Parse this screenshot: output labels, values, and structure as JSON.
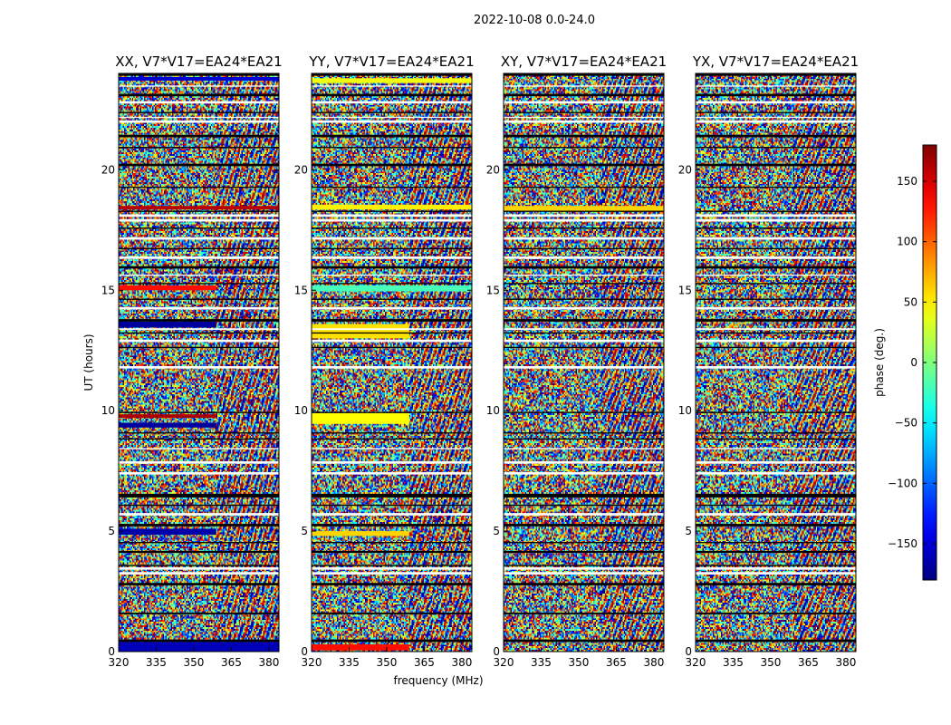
{
  "chart_data": {
    "type": "heatmap",
    "suptitle": "2022-10-08 0.0-24.0",
    "xlabel": "frequency (MHz)",
    "ylabel": "UT (hours)",
    "xlim": [
      320,
      384
    ],
    "ylim": [
      0,
      24
    ],
    "xticks": [
      320,
      335,
      350,
      365,
      380
    ],
    "yticks": [
      0,
      5,
      10,
      15,
      20
    ],
    "colorbar": {
      "label": "phase (deg.)",
      "range": [
        -180,
        180
      ],
      "ticks": [
        -150,
        -100,
        -50,
        0,
        50,
        100,
        150
      ],
      "tick_labels": [
        "−150",
        "−100",
        "−50",
        "0",
        "50",
        "100",
        "150"
      ],
      "colormap": "jet"
    },
    "panels": [
      {
        "title": "XX, V7*V17=EA24*EA21",
        "bands": [
          {
            "t0": 0.0,
            "t1": 0.4,
            "f0": 320,
            "f1": 384,
            "phase": -160
          },
          {
            "t0": 4.85,
            "t1": 5.1,
            "f0": 320,
            "f1": 359,
            "phase": -165
          },
          {
            "t0": 9.3,
            "t1": 9.5,
            "f0": 320,
            "f1": 359,
            "phase": -170
          },
          {
            "t0": 9.7,
            "t1": 9.85,
            "f0": 320,
            "f1": 359,
            "phase": 165
          },
          {
            "t0": 13.45,
            "t1": 13.7,
            "f0": 320,
            "f1": 359,
            "phase": -170
          },
          {
            "t0": 15.0,
            "t1": 15.2,
            "f0": 320,
            "f1": 359,
            "phase": 130
          },
          {
            "t0": 18.35,
            "t1": 18.5,
            "f0": 320,
            "f1": 384,
            "phase": 160
          },
          {
            "t0": 23.7,
            "t1": 23.85,
            "f0": 320,
            "f1": 384,
            "phase": -150
          }
        ]
      },
      {
        "title": "YY, V7*V17=EA24*EA21",
        "bands": [
          {
            "t0": 0.05,
            "t1": 0.3,
            "f0": 320,
            "f1": 359,
            "phase": 130
          },
          {
            "t0": 4.8,
            "t1": 5.0,
            "f0": 320,
            "f1": 359,
            "phase": 60
          },
          {
            "t0": 9.45,
            "t1": 9.9,
            "f0": 320,
            "f1": 359,
            "phase": 45
          },
          {
            "t0": 13.0,
            "t1": 13.6,
            "f0": 320,
            "f1": 359,
            "phase": 55
          },
          {
            "t0": 14.95,
            "t1": 15.2,
            "f0": 320,
            "f1": 384,
            "phase": -20
          },
          {
            "t0": 18.35,
            "t1": 18.55,
            "f0": 320,
            "f1": 384,
            "phase": 50
          },
          {
            "t0": 23.6,
            "t1": 23.8,
            "f0": 320,
            "f1": 384,
            "phase": 40
          }
        ]
      },
      {
        "title": "XY, V7*V17=EA24*EA21",
        "bands": [
          {
            "t0": 18.3,
            "t1": 18.5,
            "f0": 320,
            "f1": 384,
            "phase": 60
          }
        ]
      },
      {
        "title": "YX, V7*V17=EA24*EA21",
        "bands": []
      }
    ],
    "gaps": [
      {
        "t0": 0.4,
        "t1": 0.5,
        "color": "black"
      },
      {
        "t0": 1.55,
        "t1": 1.62,
        "color": "black"
      },
      {
        "t0": 2.75,
        "t1": 2.85,
        "color": "black"
      },
      {
        "t0": 3.2,
        "t1": 3.3,
        "color": "white"
      },
      {
        "t0": 3.4,
        "t1": 3.5,
        "color": "white"
      },
      {
        "t0": 3.55,
        "t1": 3.6,
        "color": "black"
      },
      {
        "t0": 4.1,
        "t1": 4.18,
        "color": "black"
      },
      {
        "t0": 4.5,
        "t1": 4.55,
        "color": "black"
      },
      {
        "t0": 5.2,
        "t1": 5.3,
        "color": "black"
      },
      {
        "t0": 5.65,
        "t1": 5.75,
        "color": "white"
      },
      {
        "t0": 6.05,
        "t1": 6.1,
        "color": "black"
      },
      {
        "t0": 6.4,
        "t1": 6.55,
        "color": "black"
      },
      {
        "t0": 7.35,
        "t1": 7.45,
        "color": "white"
      },
      {
        "t0": 7.8,
        "t1": 7.9,
        "color": "white"
      },
      {
        "t0": 8.4,
        "t1": 8.45,
        "color": "white"
      },
      {
        "t0": 8.8,
        "t1": 8.85,
        "color": "black"
      },
      {
        "t0": 9.05,
        "t1": 9.1,
        "color": "black"
      },
      {
        "t0": 9.9,
        "t1": 9.95,
        "color": "black"
      },
      {
        "t0": 11.75,
        "t1": 11.85,
        "color": "white"
      },
      {
        "t0": 12.6,
        "t1": 12.65,
        "color": "black"
      },
      {
        "t0": 12.85,
        "t1": 12.95,
        "color": "white"
      },
      {
        "t0": 13.2,
        "t1": 13.25,
        "color": "black"
      },
      {
        "t0": 13.35,
        "t1": 13.42,
        "color": "white"
      },
      {
        "t0": 13.7,
        "t1": 13.8,
        "color": "black"
      },
      {
        "t0": 14.2,
        "t1": 14.3,
        "color": "white"
      },
      {
        "t0": 14.6,
        "t1": 14.65,
        "color": "black"
      },
      {
        "t0": 15.25,
        "t1": 15.3,
        "color": "black"
      },
      {
        "t0": 15.6,
        "t1": 15.65,
        "color": "white"
      },
      {
        "t0": 15.9,
        "t1": 16.0,
        "color": "black"
      },
      {
        "t0": 16.3,
        "t1": 16.4,
        "color": "white"
      },
      {
        "t0": 16.7,
        "t1": 16.75,
        "color": "black"
      },
      {
        "t0": 17.1,
        "t1": 17.2,
        "color": "white"
      },
      {
        "t0": 17.55,
        "t1": 17.6,
        "color": "black"
      },
      {
        "t0": 17.85,
        "t1": 17.95,
        "color": "white"
      },
      {
        "t0": 18.05,
        "t1": 18.15,
        "color": "white"
      },
      {
        "t0": 18.25,
        "t1": 18.3,
        "color": "black"
      },
      {
        "t0": 19.25,
        "t1": 19.3,
        "color": "black"
      },
      {
        "t0": 20.15,
        "t1": 20.25,
        "color": "black"
      },
      {
        "t0": 20.9,
        "t1": 20.95,
        "color": "black"
      },
      {
        "t0": 21.35,
        "t1": 21.45,
        "color": "black"
      },
      {
        "t0": 21.95,
        "t1": 22.05,
        "color": "white"
      },
      {
        "t0": 22.15,
        "t1": 22.2,
        "color": "white"
      },
      {
        "t0": 22.35,
        "t1": 22.4,
        "color": "black"
      },
      {
        "t0": 22.75,
        "t1": 22.85,
        "color": "white"
      },
      {
        "t0": 23.05,
        "t1": 23.15,
        "color": "black"
      },
      {
        "t0": 23.45,
        "t1": 23.5,
        "color": "white"
      },
      {
        "t0": 23.9,
        "t1": 24.0,
        "color": "black"
      }
    ]
  }
}
